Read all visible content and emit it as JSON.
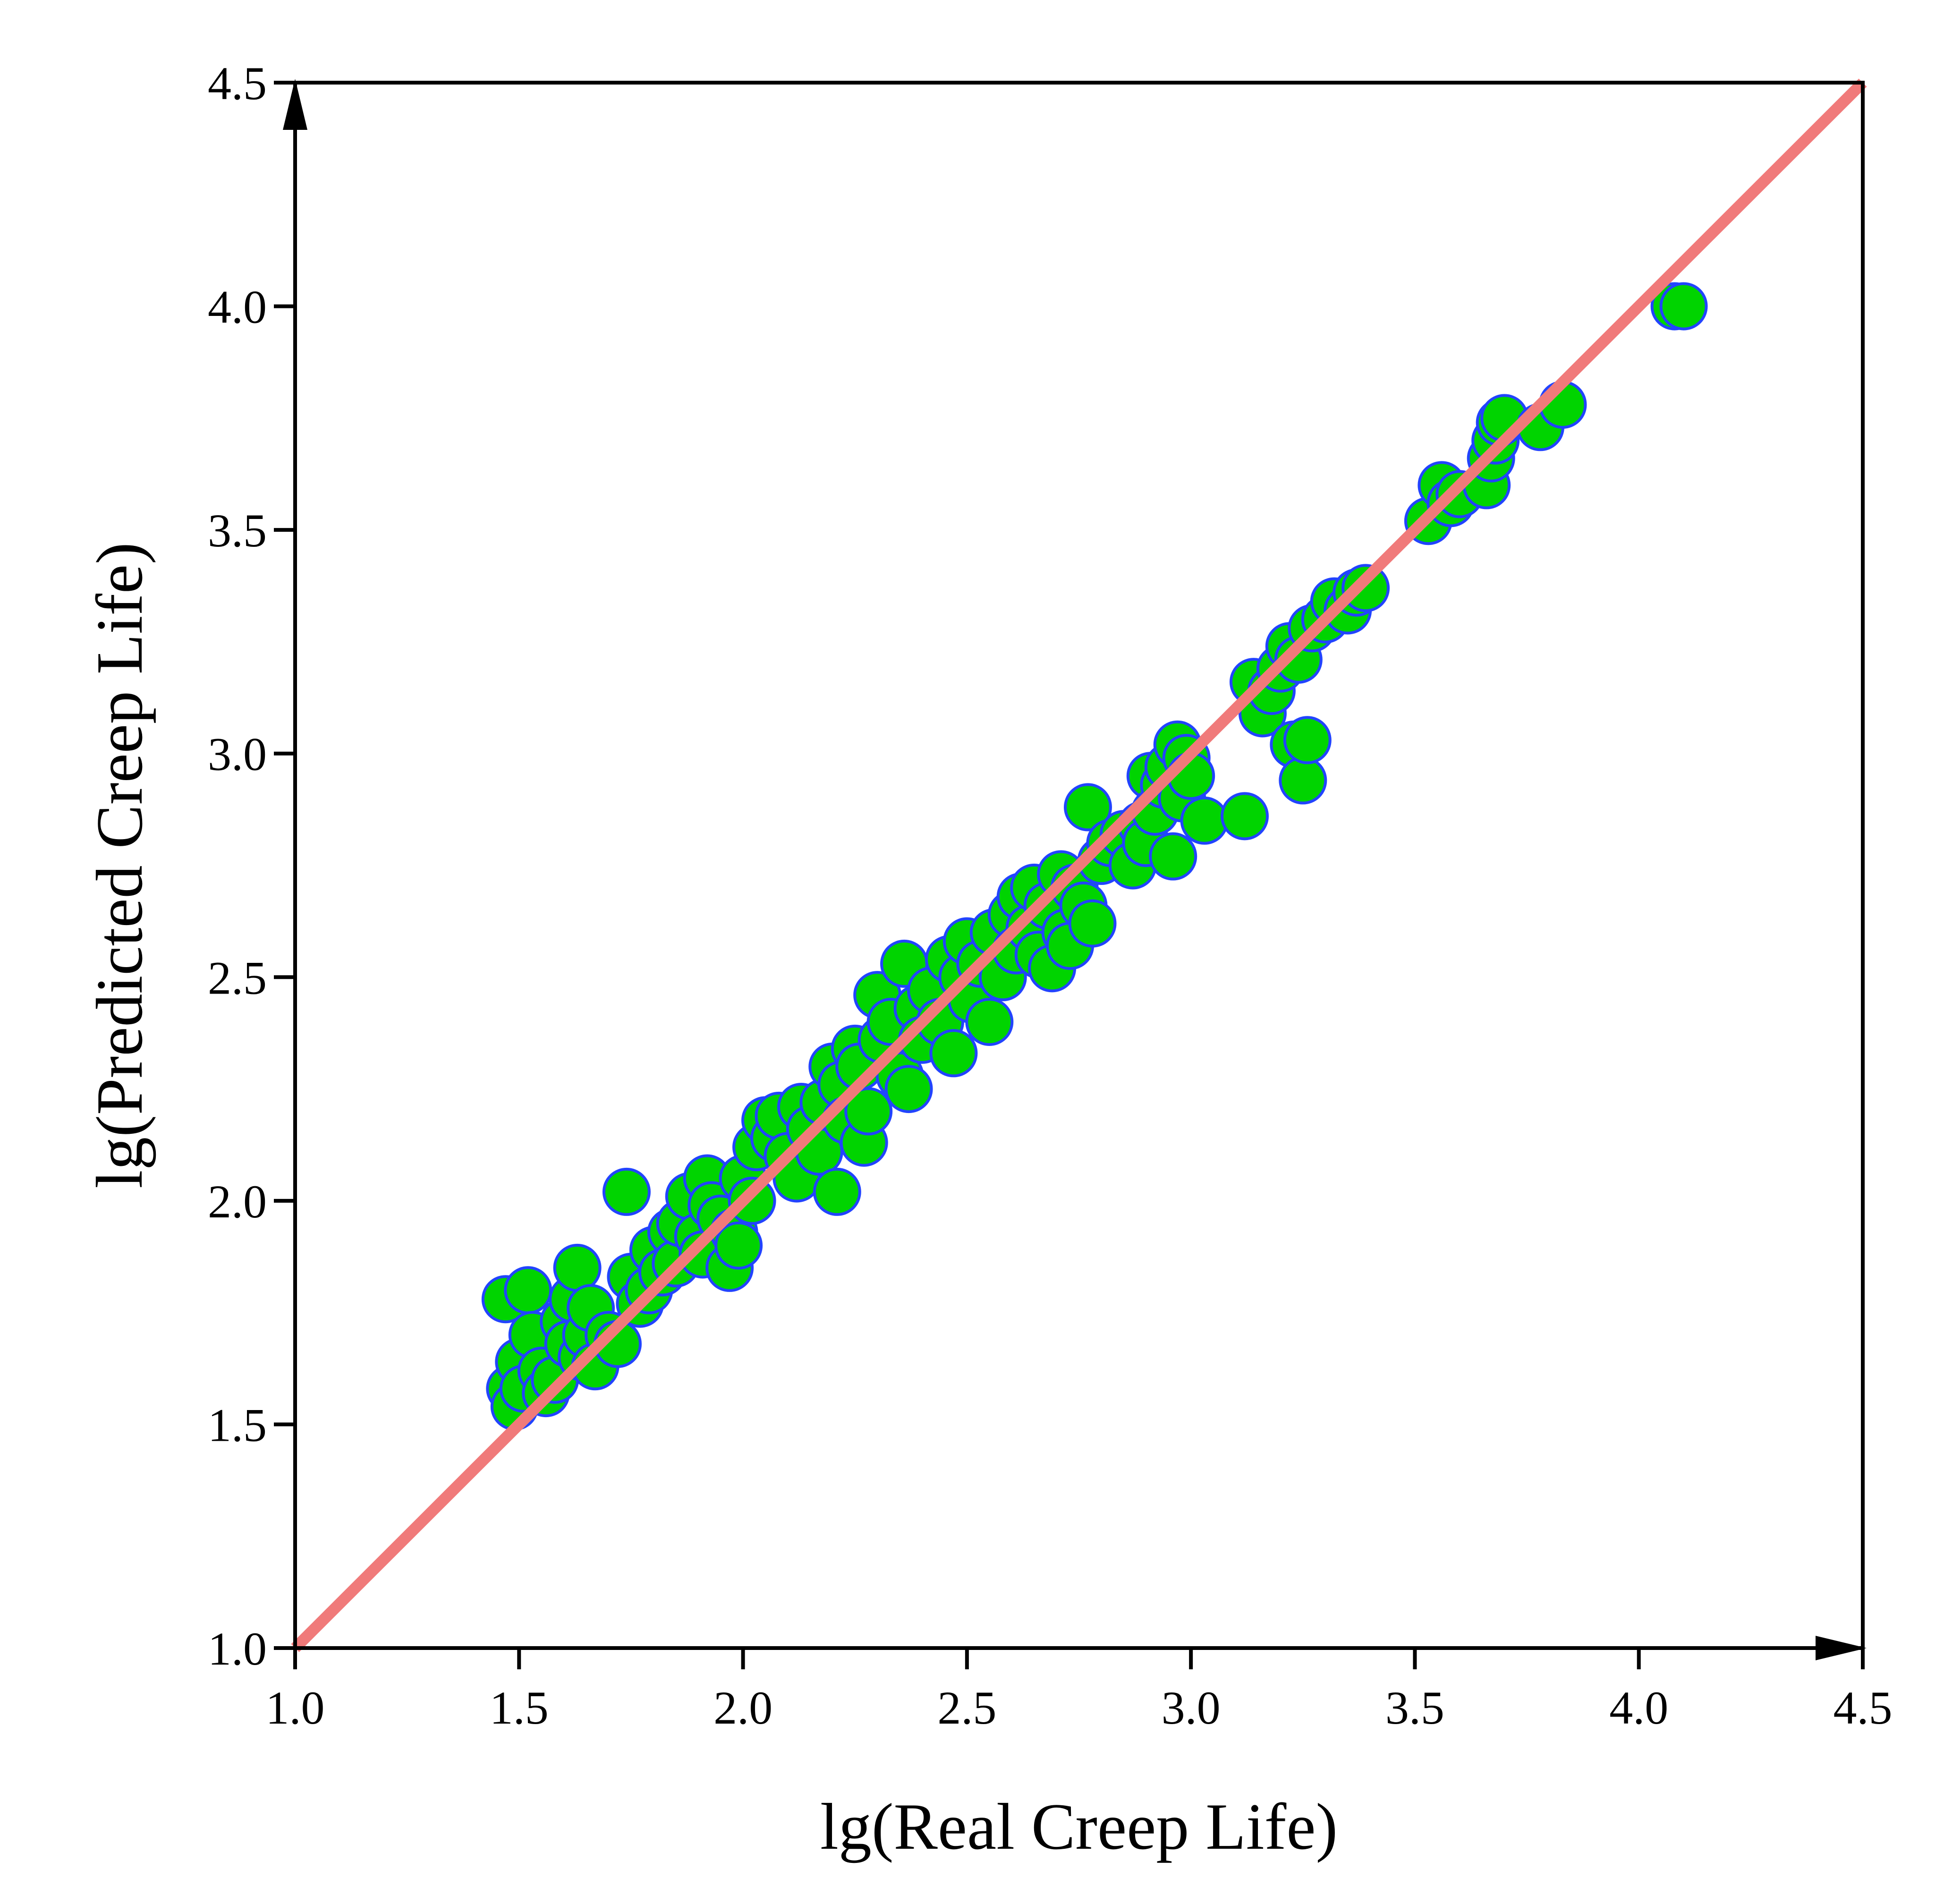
{
  "chart_data": {
    "type": "scatter",
    "xlabel": "lg(Real Creep Life)",
    "ylabel": "lg(Predicted Creep Life)",
    "xlim": [
      1.0,
      4.5
    ],
    "ylim": [
      1.0,
      4.5
    ],
    "xticks": [
      "1.0",
      "1.5",
      "2.0",
      "2.5",
      "3.0",
      "3.5",
      "4.0",
      "4.5"
    ],
    "yticks": [
      "1.0",
      "1.5",
      "2.0",
      "2.5",
      "3.0",
      "3.5",
      "4.0",
      "4.5"
    ],
    "grid": false,
    "legend": false,
    "colors": {
      "point_fill": "#00d400",
      "point_edge": "#2244ff",
      "reference_line": "#f07a7a",
      "axes": "#000000"
    },
    "reference_line": {
      "x": [
        1.0,
        4.5
      ],
      "y": [
        1.0,
        4.5
      ]
    },
    "series": [
      {
        "points": [
          [
            1.47,
            1.78
          ],
          [
            1.48,
            1.58
          ],
          [
            1.49,
            1.54
          ],
          [
            1.5,
            1.64
          ],
          [
            1.51,
            1.58
          ],
          [
            1.52,
            1.8
          ],
          [
            1.53,
            1.7
          ],
          [
            1.55,
            1.62
          ],
          [
            1.56,
            1.57
          ],
          [
            1.58,
            1.6
          ],
          [
            1.6,
            1.73
          ],
          [
            1.61,
            1.68
          ],
          [
            1.62,
            1.78
          ],
          [
            1.63,
            1.85
          ],
          [
            1.64,
            1.65
          ],
          [
            1.65,
            1.7
          ],
          [
            1.66,
            1.76
          ],
          [
            1.67,
            1.63
          ],
          [
            1.7,
            1.7
          ],
          [
            1.72,
            1.68
          ],
          [
            1.74,
            2.02
          ],
          [
            1.75,
            1.83
          ],
          [
            1.77,
            1.77
          ],
          [
            1.79,
            1.8
          ],
          [
            1.8,
            1.89
          ],
          [
            1.82,
            1.84
          ],
          [
            1.84,
            1.93
          ],
          [
            1.85,
            1.86
          ],
          [
            1.86,
            1.95
          ],
          [
            1.88,
            2.01
          ],
          [
            1.9,
            1.92
          ],
          [
            1.91,
            1.88
          ],
          [
            1.92,
            2.05
          ],
          [
            1.93,
            1.99
          ],
          [
            1.95,
            1.96
          ],
          [
            1.97,
            1.85
          ],
          [
            1.98,
            1.93
          ],
          [
            1.99,
            1.9
          ],
          [
            2.0,
            2.05
          ],
          [
            2.02,
            2.0
          ],
          [
            2.03,
            2.12
          ],
          [
            2.05,
            2.18
          ],
          [
            2.07,
            2.14
          ],
          [
            2.08,
            2.19
          ],
          [
            2.1,
            2.1
          ],
          [
            2.12,
            2.05
          ],
          [
            2.13,
            2.21
          ],
          [
            2.15,
            2.16
          ],
          [
            2.17,
            2.11
          ],
          [
            2.18,
            2.22
          ],
          [
            2.2,
            2.3
          ],
          [
            2.21,
            2.02
          ],
          [
            2.22,
            2.26
          ],
          [
            2.23,
            2.18
          ],
          [
            2.25,
            2.34
          ],
          [
            2.26,
            2.3
          ],
          [
            2.27,
            2.13
          ],
          [
            2.28,
            2.2
          ],
          [
            2.3,
            2.46
          ],
          [
            2.31,
            2.36
          ],
          [
            2.33,
            2.4
          ],
          [
            2.35,
            2.28
          ],
          [
            2.36,
            2.53
          ],
          [
            2.37,
            2.25
          ],
          [
            2.39,
            2.43
          ],
          [
            2.4,
            2.36
          ],
          [
            2.42,
            2.47
          ],
          [
            2.44,
            2.4
          ],
          [
            2.46,
            2.54
          ],
          [
            2.47,
            2.33
          ],
          [
            2.49,
            2.5
          ],
          [
            2.5,
            2.58
          ],
          [
            2.51,
            2.45
          ],
          [
            2.53,
            2.53
          ],
          [
            2.55,
            2.4
          ],
          [
            2.56,
            2.6
          ],
          [
            2.58,
            2.5
          ],
          [
            2.6,
            2.64
          ],
          [
            2.61,
            2.56
          ],
          [
            2.62,
            2.68
          ],
          [
            2.64,
            2.61
          ],
          [
            2.65,
            2.7
          ],
          [
            2.66,
            2.55
          ],
          [
            2.68,
            2.66
          ],
          [
            2.69,
            2.52
          ],
          [
            2.71,
            2.73
          ],
          [
            2.72,
            2.6
          ],
          [
            2.73,
            2.57
          ],
          [
            2.74,
            2.7
          ],
          [
            2.76,
            2.66
          ],
          [
            2.77,
            2.88
          ],
          [
            2.78,
            2.62
          ],
          [
            2.8,
            2.76
          ],
          [
            2.82,
            2.8
          ],
          [
            2.85,
            2.82
          ],
          [
            2.87,
            2.75
          ],
          [
            2.89,
            2.84
          ],
          [
            2.9,
            2.8
          ],
          [
            2.91,
            2.95
          ],
          [
            2.92,
            2.87
          ],
          [
            2.94,
            2.93
          ],
          [
            2.95,
            2.97
          ],
          [
            2.96,
            2.77
          ],
          [
            2.97,
            3.02
          ],
          [
            2.98,
            2.9
          ],
          [
            2.99,
            2.99
          ],
          [
            3.0,
            2.95
          ],
          [
            3.03,
            2.85
          ],
          [
            3.12,
            2.86
          ],
          [
            3.14,
            3.16
          ],
          [
            3.16,
            3.09
          ],
          [
            3.18,
            3.14
          ],
          [
            3.2,
            3.19
          ],
          [
            3.22,
            3.24
          ],
          [
            3.23,
            3.02
          ],
          [
            3.24,
            3.21
          ],
          [
            3.25,
            2.94
          ],
          [
            3.26,
            3.03
          ],
          [
            3.27,
            3.28
          ],
          [
            3.3,
            3.3
          ],
          [
            3.32,
            3.34
          ],
          [
            3.35,
            3.32
          ],
          [
            3.37,
            3.36
          ],
          [
            3.39,
            3.37
          ],
          [
            3.53,
            3.52
          ],
          [
            3.56,
            3.6
          ],
          [
            3.58,
            3.56
          ],
          [
            3.6,
            3.58
          ],
          [
            3.66,
            3.6
          ],
          [
            3.67,
            3.66
          ],
          [
            3.68,
            3.7
          ],
          [
            3.69,
            3.74
          ],
          [
            3.7,
            3.75
          ],
          [
            3.78,
            3.73
          ],
          [
            3.83,
            3.78
          ],
          [
            4.08,
            4.0
          ],
          [
            4.1,
            4.0
          ]
        ]
      }
    ]
  }
}
